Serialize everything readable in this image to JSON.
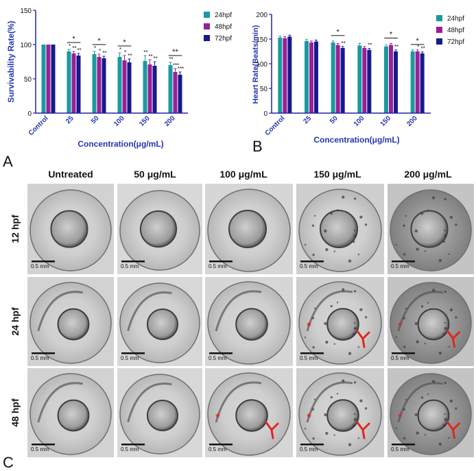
{
  "colors": {
    "c24": "#1a9aa0",
    "c48": "#9b1f98",
    "c72": "#161a8c",
    "axis": "#2222a0",
    "label": "#2436b0",
    "arrow": "#e0261c"
  },
  "panel_labels": {
    "a": "A",
    "b": "B",
    "c": "C"
  },
  "chart_data": [
    {
      "type": "bar",
      "title": "",
      "xlabel": "Concentration(μg/mL)",
      "ylabel": "Survivability Rate(%)",
      "ylim": [
        0,
        150
      ],
      "yticks": [
        "0",
        "50",
        "100",
        "150"
      ],
      "categories": [
        "Control",
        "25",
        "50",
        "100",
        "150",
        "200"
      ],
      "legend_position": "top-right",
      "series": [
        {
          "name": "24hpf",
          "values": [
            100,
            90,
            86,
            82,
            76,
            70
          ]
        },
        {
          "name": "48hpf",
          "values": [
            100,
            87,
            82,
            77,
            71,
            60
          ]
        },
        {
          "name": "72hpf",
          "values": [
            100,
            84,
            80,
            74,
            69,
            56
          ]
        }
      ],
      "errors": [
        [
          0,
          3,
          4,
          6,
          8,
          4
        ],
        [
          0,
          3,
          4,
          7,
          7,
          5
        ],
        [
          0,
          3,
          3,
          5,
          6,
          4
        ]
      ],
      "sig_marks": [
        [
          "",
          "*",
          "*",
          "*",
          "**",
          "**"
        ],
        [
          "",
          "**",
          "*",
          "*",
          "**",
          "***"
        ],
        [
          "",
          "**",
          "**",
          "**",
          "**",
          "***"
        ]
      ],
      "brackets": [
        {
          "category": "25",
          "label": "*"
        },
        {
          "category": "50",
          "label": "*"
        },
        {
          "category": "100",
          "label": "*"
        },
        {
          "category": "200",
          "label": "**"
        }
      ]
    },
    {
      "type": "bar",
      "title": "",
      "xlabel": "Concentration(μg/mL)",
      "ylabel": "Heart Rate(Beats/min)",
      "ylim": [
        0,
        200
      ],
      "yticks": [
        "0",
        "50",
        "100",
        "150",
        "200"
      ],
      "categories": [
        "Control",
        "25",
        "50",
        "100",
        "150",
        "200"
      ],
      "legend_position": "top-right",
      "series": [
        {
          "name": "24hpf",
          "values": [
            153,
            146,
            143,
            137,
            135,
            125
          ]
        },
        {
          "name": "48hpf",
          "values": [
            152,
            143,
            138,
            132,
            138,
            125
          ]
        },
        {
          "name": "72hpf",
          "values": [
            155,
            145,
            132,
            128,
            125,
            121
          ]
        }
      ],
      "errors": [
        [
          3,
          3,
          3,
          4,
          3,
          3
        ],
        [
          3,
          3,
          3,
          3,
          3,
          3
        ],
        [
          3,
          3,
          3,
          3,
          3,
          3
        ]
      ],
      "sig_marks": [
        [
          "",
          "",
          "",
          "",
          "",
          ""
        ],
        [
          "",
          "",
          "",
          "",
          "",
          "*"
        ],
        [
          "",
          "",
          "**",
          "**",
          "**",
          "**"
        ]
      ],
      "brackets": [
        {
          "category": "50",
          "label": "*"
        },
        {
          "category": "150",
          "label": "*"
        },
        {
          "category": "200",
          "label": "*"
        }
      ]
    }
  ],
  "micrographs": {
    "columns": [
      "Untreated",
      "50 μg/mL",
      "100 μg/mL",
      "150 μg/mL",
      "200 μg/mL"
    ],
    "rows": [
      "12 hpf",
      "24 hpf",
      "48 hpf"
    ],
    "scale_label": "0.5 mm",
    "asterisk": "*"
  }
}
